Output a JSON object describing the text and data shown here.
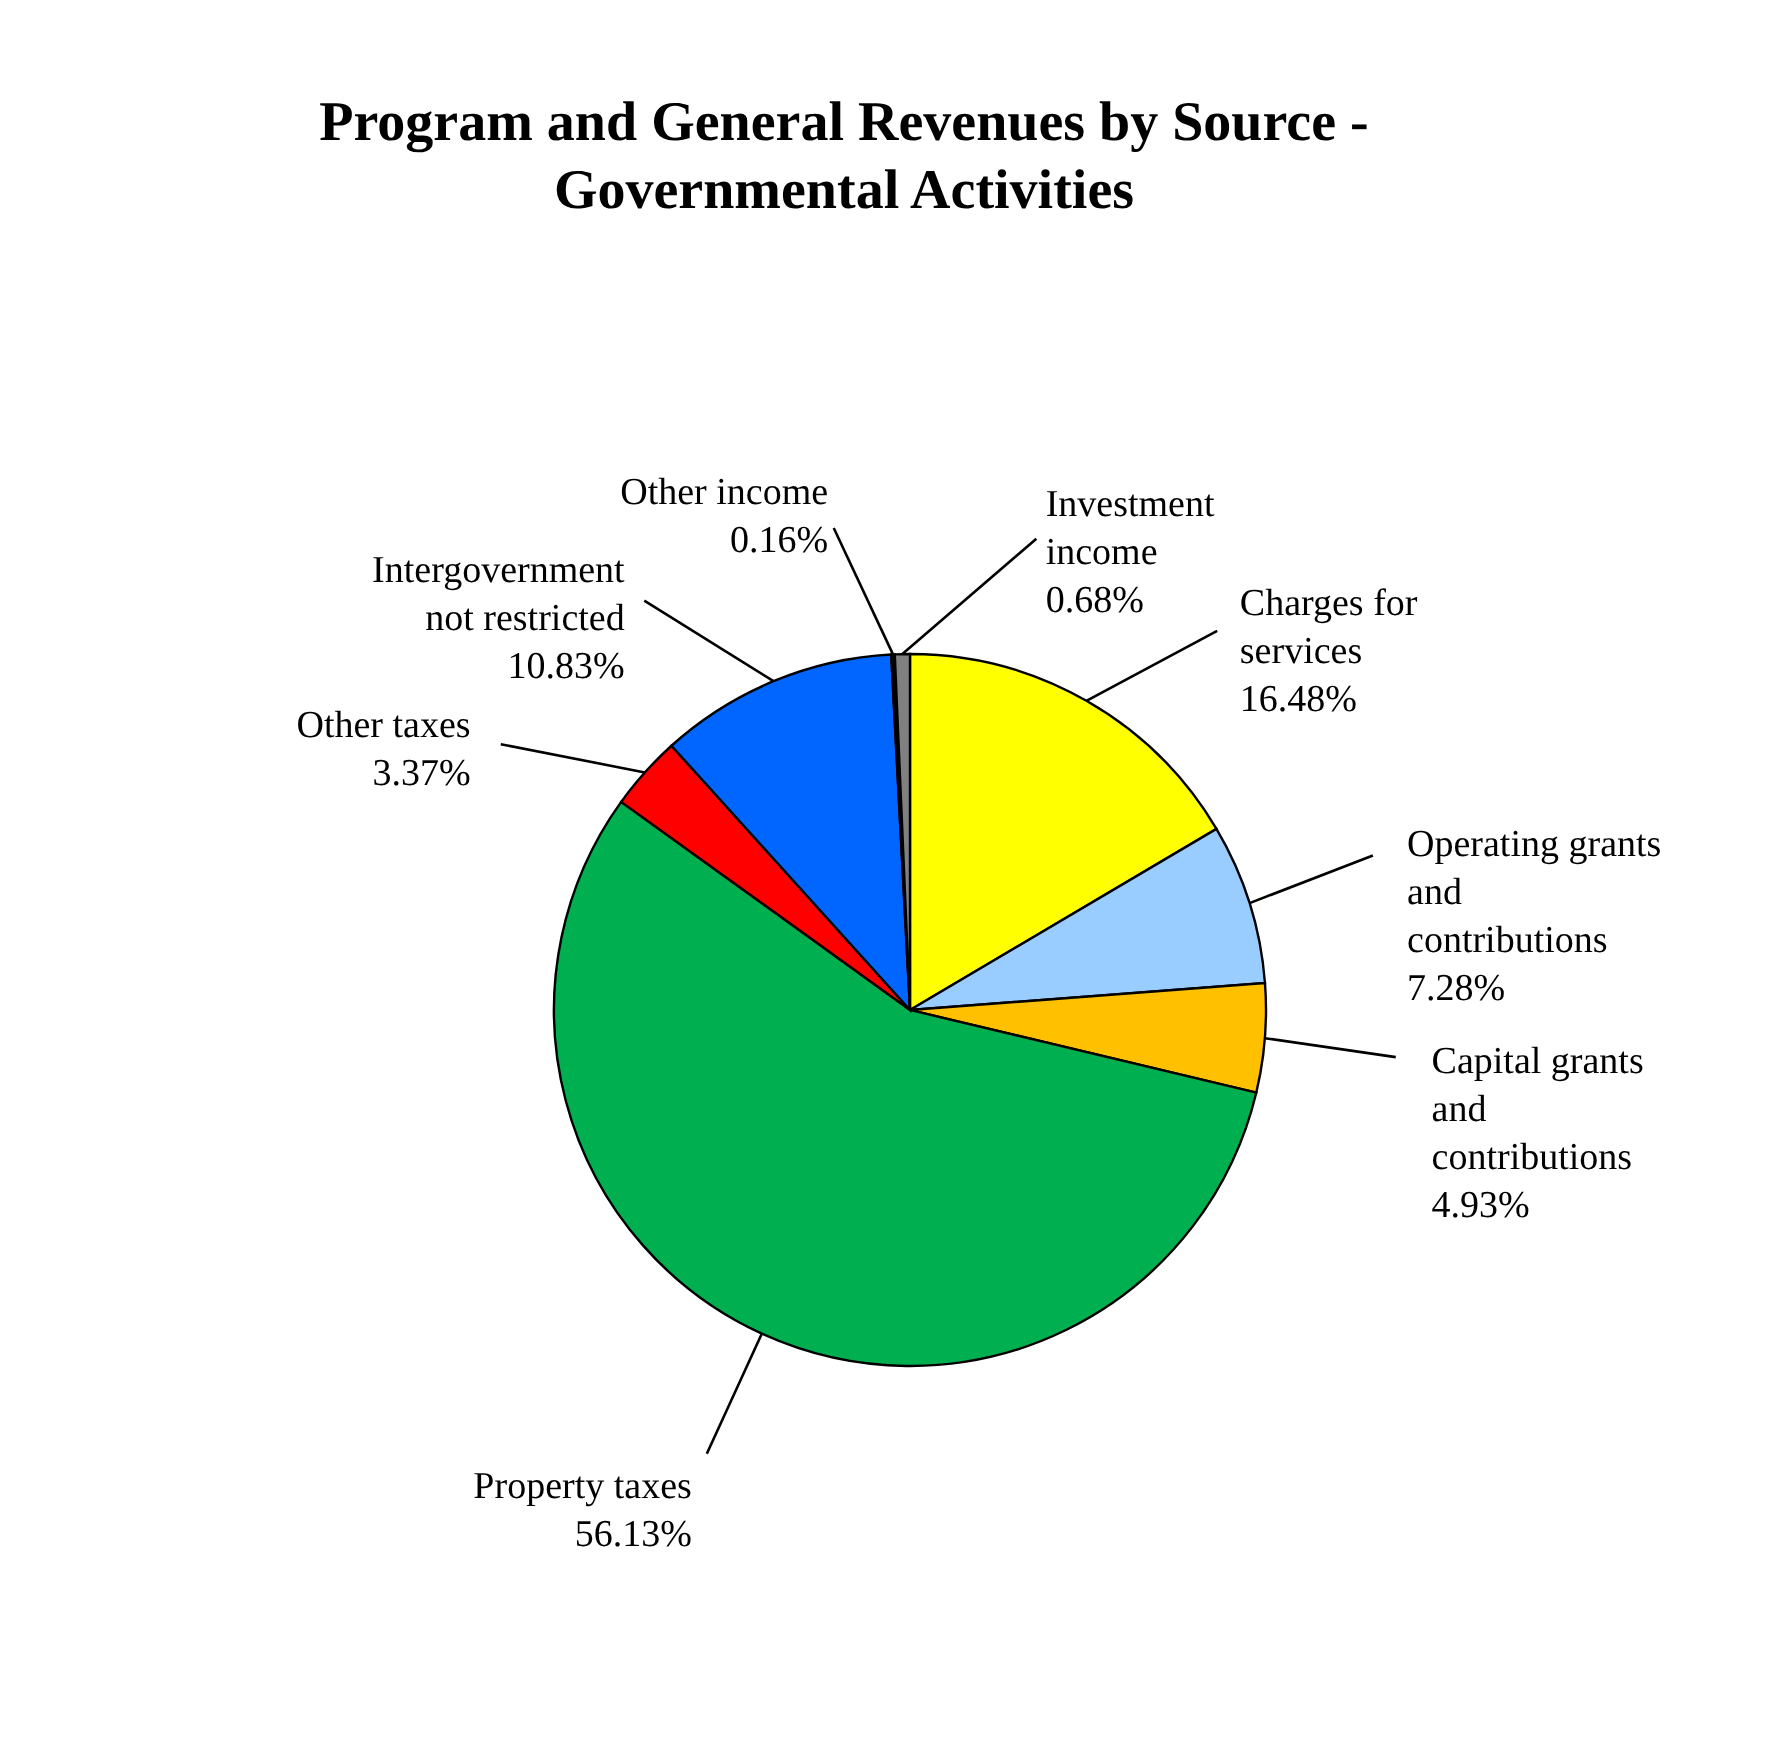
{
  "chart_data": {
    "type": "pie",
    "title": "Program and General Revenues by Source - Governmental Activities",
    "categories": [
      "Charges for services",
      "Operating grants and contributions",
      "Capital grants and contributions",
      "Property taxes",
      "Other taxes",
      "Intergovernment not restricted",
      "Other income",
      "Investment income"
    ],
    "values": [
      16.48,
      7.28,
      4.93,
      56.13,
      3.37,
      10.83,
      0.16,
      0.68
    ],
    "colors": [
      "#ffff00",
      "#99ccff",
      "#ffc000",
      "#00b050",
      "#ff0000",
      "#0066ff",
      "#000000",
      "#808080"
    ],
    "value_labels": [
      "16.48%",
      "7.28%",
      "4.93%",
      "56.13%",
      "3.37%",
      "10.83%",
      "0.16%",
      "0.68%"
    ]
  }
}
